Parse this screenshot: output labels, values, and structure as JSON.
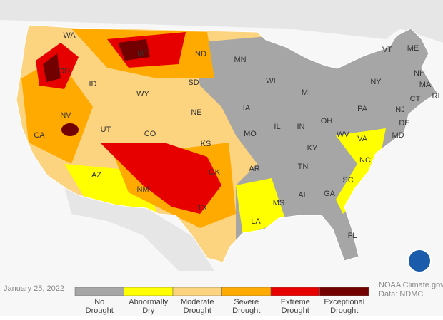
{
  "date": "January 25, 2022",
  "credit": [
    "NOAA Climate.gov",
    "Data: NDMC"
  ],
  "legend": [
    {
      "label": [
        "No",
        "Drought"
      ],
      "color": "#a6a6a6"
    },
    {
      "label": [
        "Abnormally",
        "Dry"
      ],
      "color": "#ffff00"
    },
    {
      "label": [
        "Moderate",
        "Drought"
      ],
      "color": "#fcd37f"
    },
    {
      "label": [
        "Severe",
        "Drought"
      ],
      "color": "#ffaa00"
    },
    {
      "label": [
        "Extreme",
        "Drought"
      ],
      "color": "#e60000"
    },
    {
      "label": [
        "Exceptional",
        "Drought"
      ],
      "color": "#730000"
    }
  ],
  "states": [
    "WA",
    "OR",
    "CA",
    "NV",
    "ID",
    "MT",
    "WY",
    "UT",
    "AZ",
    "CO",
    "NM",
    "ND",
    "SD",
    "NE",
    "KS",
    "OK",
    "TX",
    "MN",
    "IA",
    "MO",
    "AR",
    "LA",
    "WI",
    "IL",
    "MS",
    "MI",
    "IN",
    "KY",
    "TN",
    "AL",
    "GA",
    "FL",
    "OH",
    "WV",
    "VA",
    "NC",
    "SC",
    "PA",
    "NY",
    "VT",
    "ME",
    "NH",
    "MA",
    "CT",
    "RI",
    "NJ",
    "DE",
    "MD"
  ]
}
